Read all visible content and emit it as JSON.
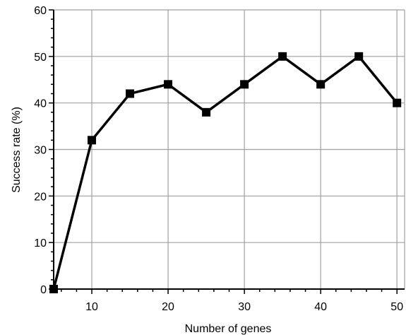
{
  "chart_data": {
    "type": "line",
    "title": "",
    "xlabel": "Number of genes",
    "ylabel": "Success rate (%)",
    "xlim": [
      5,
      51
    ],
    "ylim": [
      0,
      60
    ],
    "xticks": [
      10,
      20,
      30,
      40,
      50
    ],
    "yticks": [
      0,
      10,
      20,
      30,
      40,
      50,
      60
    ],
    "grid": true,
    "series": [
      {
        "x": [
          5,
          10,
          15,
          20,
          25,
          30,
          35,
          40,
          45,
          50
        ],
        "y": [
          0,
          32,
          42,
          44,
          38,
          44,
          50,
          44,
          50,
          40
        ],
        "color": "#000000",
        "marker": "square"
      }
    ]
  }
}
